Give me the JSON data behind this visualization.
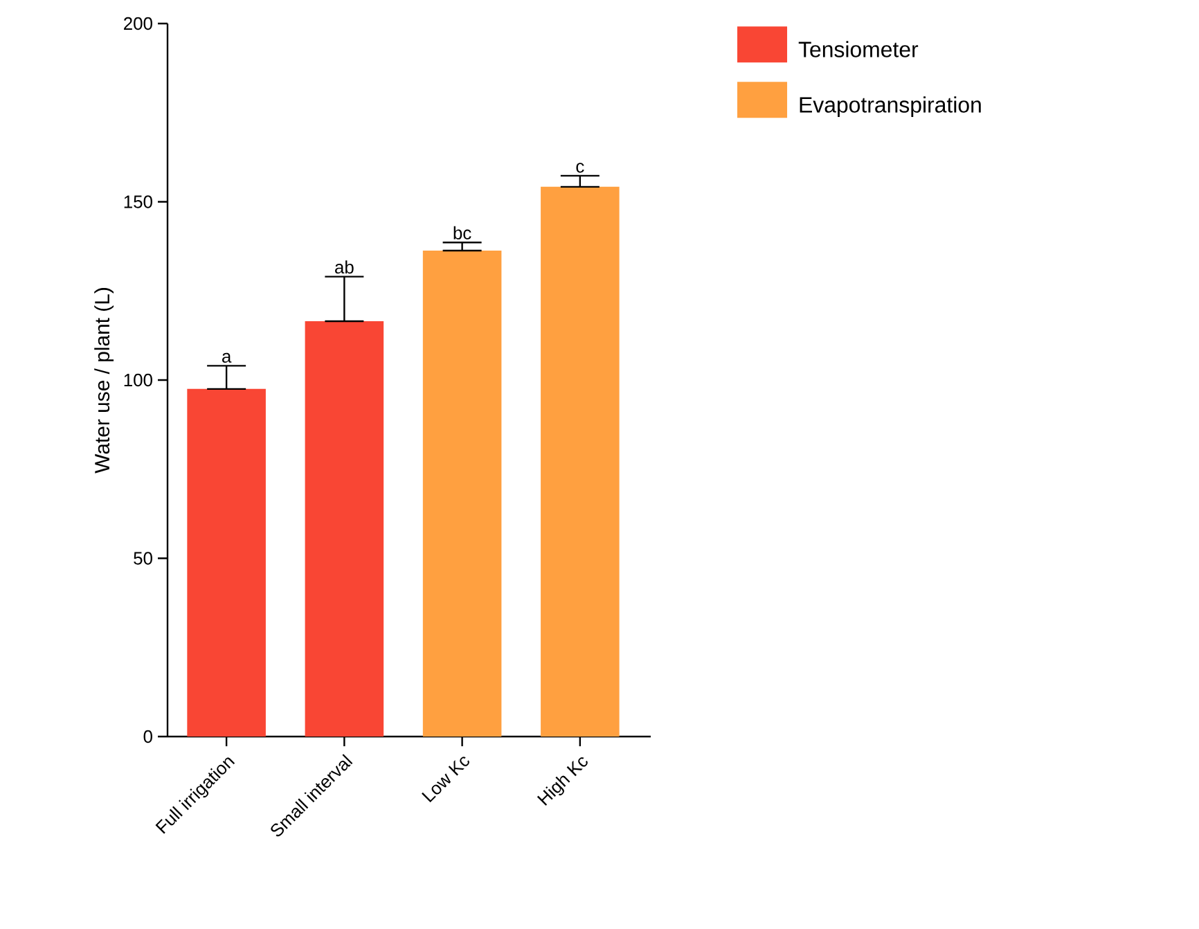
{
  "chart_data": {
    "type": "bar",
    "ylabel": "Water use / plant (L)",
    "categories": [
      "Full irrigation",
      "Small interval",
      "Low Kc",
      "High Kc"
    ],
    "series": [
      {
        "name": "Tensiometer",
        "color": "#f94634",
        "values": [
          97.5,
          116.5,
          null,
          null
        ],
        "errors": [
          [
            97.5,
            104
          ],
          [
            116.5,
            129
          ],
          null,
          null
        ]
      },
      {
        "name": "Evapotranspiration",
        "color": "#ffa040",
        "values": [
          null,
          null,
          136.3,
          154.2
        ],
        "errors": [
          null,
          null,
          [
            136.3,
            138.6
          ],
          [
            154.2,
            157.3
          ]
        ]
      }
    ],
    "ylim": [
      0,
      200
    ],
    "yticks": [
      0,
      50,
      100,
      150,
      200
    ],
    "grid": false,
    "legend": "top right",
    "annotations": [
      {
        "text": "a",
        "x": "Full irrigation",
        "y": 104
      },
      {
        "text": "ab",
        "x": "Small interval",
        "y": 129
      },
      {
        "text": "bc",
        "x": "Low Kc",
        "y": 138.6
      },
      {
        "text": "c",
        "x": "High Kc",
        "y": 157.3
      }
    ]
  }
}
